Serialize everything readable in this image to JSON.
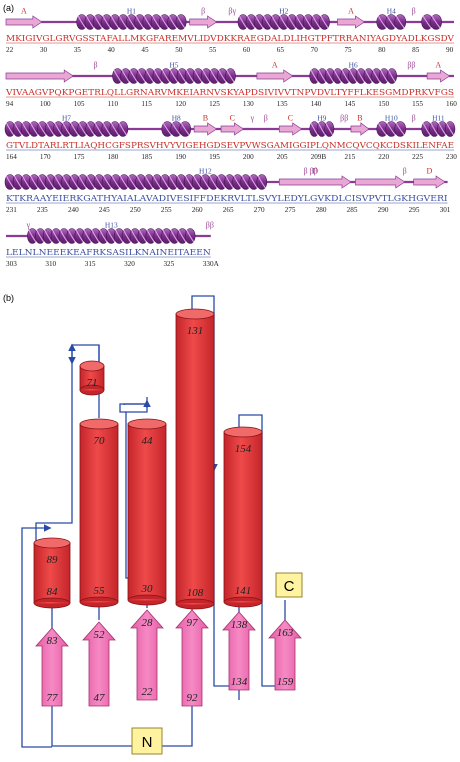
{
  "panel_a": {
    "label": "(a)",
    "rows": [
      {
        "sequence": [
          {
            "text": "MKIGIVGLGRVGSSTAFALLMKGFAREMVLIDVDKKRAEGDALDLIHGTPFTRRANIYAGDYADLKGSDV",
            "color": "red"
          }
        ],
        "numbers": [
          "22",
          "30",
          "35",
          "40",
          "45",
          "50",
          "55",
          "60",
          "65",
          "70",
          "75",
          "80",
          "85",
          "90"
        ],
        "elements": [
          {
            "type": "strand",
            "label": "A",
            "label_color": "red",
            "start": 0.0,
            "end": 0.08
          },
          {
            "type": "helix",
            "label": "H1",
            "start": 0.16,
            "end": 0.4
          },
          {
            "type": "strand",
            "label": "β",
            "start": 0.41,
            "end": 0.47
          },
          {
            "type": "mark",
            "label": "βγ",
            "start": 0.49,
            "end": 0.52
          },
          {
            "type": "helix",
            "label": "H2",
            "start": 0.52,
            "end": 0.72
          },
          {
            "type": "strand",
            "label": "A",
            "label_color": "red",
            "start": 0.74,
            "end": 0.8
          },
          {
            "type": "helix",
            "label": "H4",
            "start": 0.83,
            "end": 0.89
          },
          {
            "type": "mark",
            "label": "β",
            "start": 0.9,
            "end": 0.92
          },
          {
            "type": "helix",
            "label": "",
            "start": 0.93,
            "end": 0.97
          }
        ]
      },
      {
        "sequence": [
          {
            "text": "VIVAAGVPQKPGETRLQLLGRNARVMKEIARNVSKYAPDSIVIVVTNPVDVLTYFFLKESGMDPRKVFGS",
            "color": "red"
          }
        ],
        "numbers": [
          "94",
          "100",
          "105",
          "110",
          "115",
          "120",
          "125",
          "130",
          "135",
          "140",
          "145",
          "150",
          "155",
          "160"
        ],
        "elements": [
          {
            "type": "strand",
            "label": "",
            "start": 0.0,
            "end": 0.15
          },
          {
            "type": "mark",
            "label": "β",
            "start": 0.19,
            "end": 0.21
          },
          {
            "type": "helix",
            "label": "H5",
            "start": 0.24,
            "end": 0.51
          },
          {
            "type": "strand",
            "label": "A",
            "label_color": "red",
            "start": 0.56,
            "end": 0.64
          },
          {
            "type": "helix",
            "label": "H6",
            "start": 0.68,
            "end": 0.87
          },
          {
            "type": "mark",
            "label": "ββ",
            "start": 0.89,
            "end": 0.92
          },
          {
            "type": "strand",
            "label": "A",
            "label_color": "red",
            "start": 0.94,
            "end": 0.99
          }
        ]
      },
      {
        "sequence": [
          {
            "text": "GTVLDTARLRTLIAQHCGFSPRSVHVYVIGEHGDSEVPVWSGAMIGGIPLQNMCQVCQKCDSKILENFAE",
            "color": "mixed"
          }
        ],
        "numbers": [
          "164",
          "170",
          "175",
          "180",
          "185",
          "190",
          "195",
          "200",
          "205",
          "209B",
          "215",
          "220",
          "225",
          "230"
        ],
        "elements": [
          {
            "type": "helix",
            "label": "H7",
            "start": 0.0,
            "end": 0.27
          },
          {
            "type": "helix",
            "label": "H8",
            "start": 0.35,
            "end": 0.41
          },
          {
            "type": "strand",
            "label": "B",
            "label_color": "red",
            "start": 0.42,
            "end": 0.47
          },
          {
            "type": "strand",
            "label": "C",
            "label_color": "red",
            "start": 0.48,
            "end": 0.53
          },
          {
            "type": "mark",
            "label": "γ",
            "start": 0.54,
            "end": 0.56
          },
          {
            "type": "mark",
            "label": "β",
            "start": 0.57,
            "end": 0.59
          },
          {
            "type": "strand",
            "label": "C",
            "label_color": "red",
            "start": 0.61,
            "end": 0.66
          },
          {
            "type": "helix",
            "label": "H9",
            "start": 0.68,
            "end": 0.73
          },
          {
            "type": "mark",
            "label": "ββ",
            "start": 0.74,
            "end": 0.77
          },
          {
            "type": "strand",
            "label": "B",
            "label_color": "red",
            "start": 0.77,
            "end": 0.81
          },
          {
            "type": "helix",
            "label": "H10",
            "start": 0.83,
            "end": 0.89
          },
          {
            "type": "mark",
            "label": "β",
            "start": 0.9,
            "end": 0.92
          },
          {
            "type": "helix",
            "label": "H11",
            "start": 0.93,
            "end": 1.0
          }
        ]
      },
      {
        "sequence": [
          {
            "text": "KTKRAAYEIERKGATHYAIALAVADIVESIFFDEKRVLTLSVYLEDYLGVKDLCISVPVTLGKHGVERI",
            "color": "blue"
          }
        ],
        "numbers": [
          "231",
          "235",
          "240",
          "245",
          "250",
          "255",
          "260",
          "265",
          "270",
          "275",
          "280",
          "285",
          "290",
          "295",
          "301"
        ],
        "elements": [
          {
            "type": "helix",
            "label": "",
            "start": 0.0,
            "end": 0.18
          },
          {
            "type": "helix",
            "label": "",
            "start": 0.18,
            "end": 0.31
          },
          {
            "type": "helix",
            "label": "H12",
            "start": 0.31,
            "end": 0.58
          },
          {
            "type": "strand",
            "label": "D",
            "label_color": "red",
            "start": 0.61,
            "end": 0.77
          },
          {
            "type": "mark",
            "label": "β ββ",
            "start": 0.65,
            "end": 0.71
          },
          {
            "type": "strand",
            "label": "",
            "start": 0.78,
            "end": 0.89
          },
          {
            "type": "mark",
            "label": "β",
            "start": 0.88,
            "end": 0.9
          },
          {
            "type": "strand",
            "label": "D",
            "label_color": "red",
            "start": 0.91,
            "end": 0.98
          }
        ]
      },
      {
        "sequence": [
          {
            "text": "LELNLNEEEKEAFRKSASILKNAINEITAEEN",
            "color": "blue"
          }
        ],
        "numbers": [
          "303",
          "310",
          "315",
          "320",
          "325",
          "330A"
        ],
        "elements": [
          {
            "type": "mark",
            "label": "γ",
            "start": 0.04,
            "end": 0.06
          },
          {
            "type": "helix",
            "label": "H13",
            "start": 0.05,
            "end": 0.42
          },
          {
            "type": "mark",
            "label": "ββ",
            "start": 0.44,
            "end": 0.47
          }
        ]
      }
    ]
  },
  "panel_b": {
    "label": "(b)",
    "helices": [
      {
        "top": "89",
        "bottom": "84"
      },
      {
        "top": "70",
        "bottom": "55"
      },
      {
        "top": "71",
        "bottom": ""
      },
      {
        "top": "44",
        "bottom": "30"
      },
      {
        "top": "131",
        "bottom": "108"
      },
      {
        "top": "154",
        "bottom": "141"
      }
    ],
    "strands": [
      {
        "top": "83",
        "bottom": "77"
      },
      {
        "top": "52",
        "bottom": "47"
      },
      {
        "top": "28",
        "bottom": "22"
      },
      {
        "top": "97",
        "bottom": "92"
      },
      {
        "top": "138",
        "bottom": "134"
      },
      {
        "top": "163",
        "bottom": "159"
      }
    ],
    "n_terminus": "N",
    "c_terminus": "C"
  },
  "colors": {
    "helix_fill": "#e8373a",
    "helix_dark": "#b91f24",
    "strand_fill": "#f06fb3",
    "ribbon_purple": "#8a3b96",
    "strand_pink": "#e9a7d4",
    "connector_blue": "#2a4aa8",
    "terminus_fill": "#fff3a0",
    "seq_red": "#c8302a",
    "seq_blue": "#3a4ea0"
  }
}
